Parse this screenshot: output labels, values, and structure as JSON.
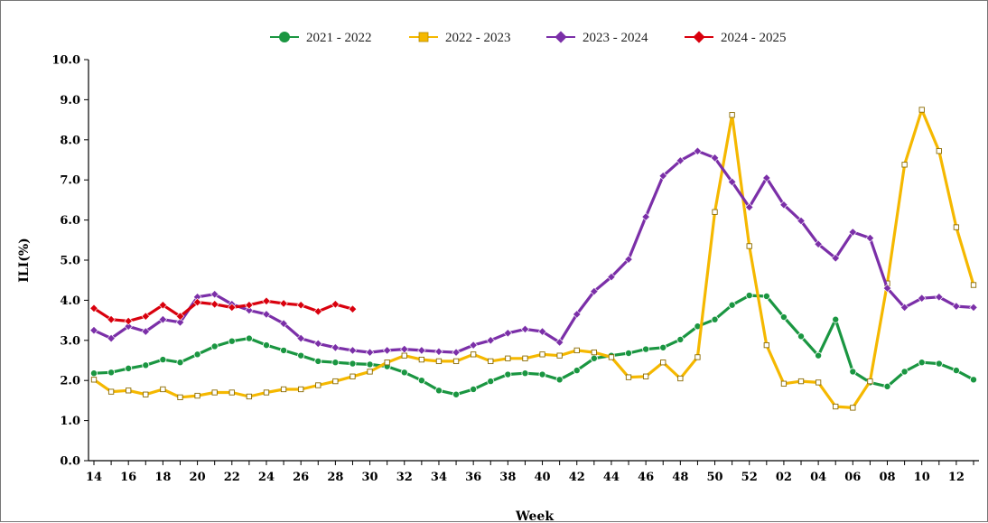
{
  "chart_data": {
    "type": "line",
    "xlabel": "Week",
    "ylabel": "ILI(%)",
    "ylim": [
      0,
      10
    ],
    "yticks": [
      "0.0",
      "1.0",
      "2.0",
      "3.0",
      "4.0",
      "5.0",
      "6.0",
      "7.0",
      "8.0",
      "9.0",
      "10.0"
    ],
    "weeks": [
      14,
      15,
      16,
      17,
      18,
      19,
      20,
      21,
      22,
      23,
      24,
      25,
      26,
      27,
      28,
      29,
      30,
      31,
      32,
      33,
      34,
      35,
      36,
      37,
      38,
      39,
      40,
      41,
      42,
      43,
      44,
      45,
      46,
      47,
      48,
      49,
      50,
      51,
      52,
      1,
      2,
      3,
      4,
      5,
      6,
      7,
      8,
      9,
      10,
      11,
      12,
      13
    ],
    "xtick_labels": [
      "14",
      "16",
      "18",
      "20",
      "22",
      "24",
      "26",
      "28",
      "30",
      "32",
      "34",
      "36",
      "38",
      "40",
      "42",
      "44",
      "46",
      "48",
      "50",
      "52",
      "02",
      "04",
      "06",
      "08",
      "10",
      "12"
    ],
    "legend_position": "top",
    "grid": false,
    "series": [
      {
        "name": "2021 - 2022",
        "color": "#1a9641",
        "marker": "circle",
        "values": [
          2.18,
          2.2,
          2.3,
          2.38,
          2.52,
          2.45,
          2.65,
          2.85,
          2.98,
          3.05,
          2.88,
          2.75,
          2.62,
          2.48,
          2.45,
          2.42,
          2.4,
          2.35,
          2.2,
          2.0,
          1.75,
          1.65,
          1.78,
          1.98,
          2.15,
          2.18,
          2.15,
          2.02,
          2.25,
          2.55,
          2.62,
          2.68,
          2.78,
          2.82,
          3.02,
          3.35,
          3.52,
          3.88,
          4.12,
          4.1,
          3.58,
          3.1,
          2.62,
          3.52,
          2.22,
          1.95,
          1.85,
          2.22,
          2.45,
          2.42,
          2.25,
          2.02
        ]
      },
      {
        "name": "2022 - 2023",
        "color": "#f5b800",
        "marker": "square",
        "values": [
          2.02,
          1.72,
          1.75,
          1.65,
          1.78,
          1.58,
          1.62,
          1.7,
          1.7,
          1.6,
          1.7,
          1.78,
          1.78,
          1.88,
          1.98,
          2.1,
          2.22,
          2.45,
          2.62,
          2.52,
          2.48,
          2.48,
          2.65,
          2.48,
          2.55,
          2.55,
          2.65,
          2.62,
          2.75,
          2.7,
          2.58,
          2.08,
          2.1,
          2.45,
          2.05,
          2.58,
          6.2,
          8.62,
          5.35,
          2.88,
          1.92,
          1.98,
          1.95,
          1.35,
          1.32,
          1.98,
          4.42,
          7.38,
          8.75,
          7.72,
          5.82,
          4.38
        ]
      },
      {
        "name": "2023 - 2024",
        "color": "#7b2fa8",
        "marker": "diamond",
        "values": [
          3.25,
          3.05,
          3.35,
          3.22,
          3.52,
          3.45,
          4.08,
          4.15,
          3.9,
          3.75,
          3.65,
          3.42,
          3.05,
          2.92,
          2.82,
          2.75,
          2.7,
          2.75,
          2.78,
          2.75,
          2.72,
          2.7,
          2.88,
          3.0,
          3.18,
          3.28,
          3.22,
          2.95,
          3.65,
          4.22,
          4.58,
          5.02,
          6.08,
          7.1,
          7.48,
          7.72,
          7.55,
          6.95,
          6.32,
          7.05,
          6.38,
          5.98,
          5.4,
          5.05,
          5.7,
          5.55,
          4.3,
          3.82,
          4.05,
          4.08,
          3.85,
          3.82
        ]
      },
      {
        "name": "2024 - 2025",
        "color": "#d9000d",
        "marker": "diamond",
        "values": [
          3.8,
          3.52,
          3.48,
          3.6,
          3.88,
          3.6,
          3.95,
          3.9,
          3.82,
          3.88,
          3.98,
          3.92,
          3.88,
          3.72,
          3.9,
          3.78
        ]
      }
    ]
  }
}
